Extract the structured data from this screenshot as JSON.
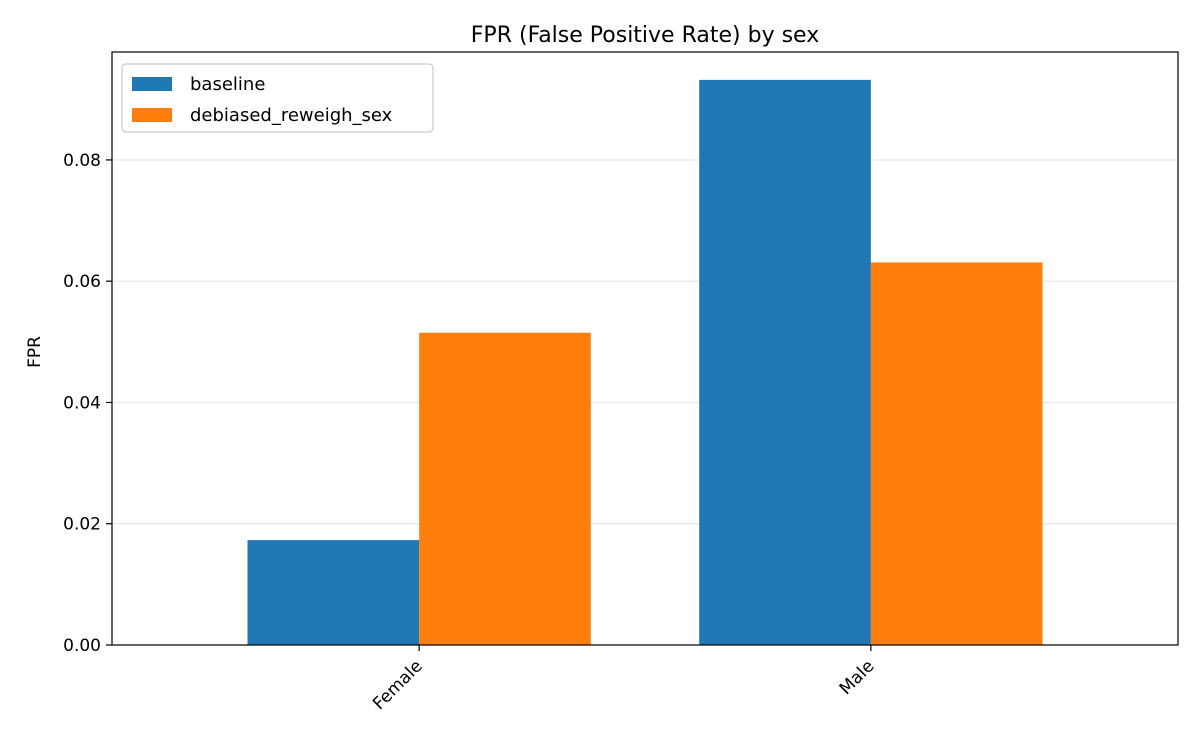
{
  "chart_data": {
    "type": "bar",
    "title": "FPR (False Positive Rate) by sex",
    "xlabel": "",
    "ylabel": "FPR",
    "categories": [
      "Female",
      "Male"
    ],
    "series": [
      {
        "name": "baseline",
        "color": "#1f77b4",
        "values": [
          0.0173,
          0.0932
        ]
      },
      {
        "name": "debiased_reweigh_sex",
        "color": "#ff7f0e",
        "values": [
          0.0515,
          0.0631
        ]
      }
    ],
    "ylim": [
      0,
      0.0978
    ],
    "yticks": [
      0,
      0.02,
      0.04,
      0.06,
      0.08
    ],
    "ytick_labels": [
      "0.00",
      "0.02",
      "0.04",
      "0.06",
      "0.08"
    ],
    "grid": "horizontal",
    "legend_position": "top-left"
  }
}
